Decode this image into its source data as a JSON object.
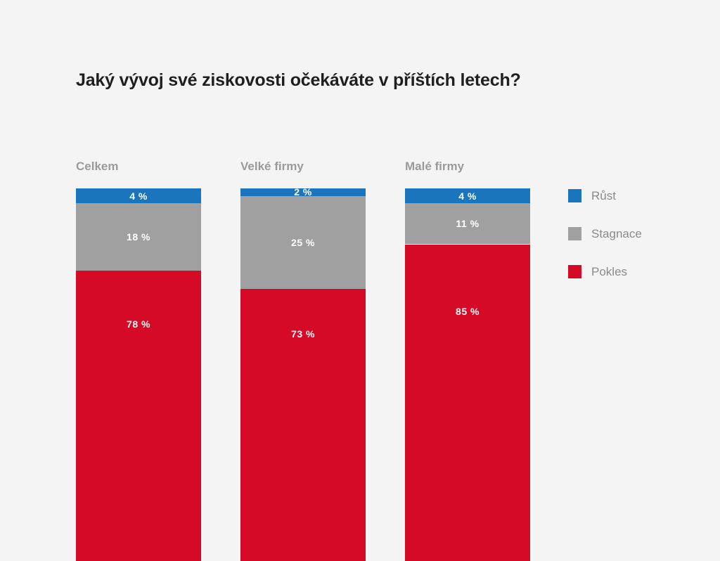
{
  "chart_data": {
    "type": "bar",
    "stacked": true,
    "title": "Jaký vývoj své ziskovosti očekáváte v příštích letech?",
    "categories": [
      "Celkem",
      "Velké firmy",
      "Malé firmy"
    ],
    "series": [
      {
        "name": "Růst",
        "color": "#1a75bc",
        "values": [
          4,
          2,
          4
        ],
        "labels": [
          "4 %",
          "2 %",
          "4 %"
        ]
      },
      {
        "name": "Stagnace",
        "color": "#a0a0a0",
        "values": [
          18,
          25,
          11
        ],
        "labels": [
          "18 %",
          "25 %",
          "11 %"
        ]
      },
      {
        "name": "Pokles",
        "color": "#d40a26",
        "values": [
          78,
          73,
          85
        ],
        "labels": [
          "78 %",
          "73 %",
          "85 %"
        ]
      }
    ],
    "legend_placement": "right"
  }
}
